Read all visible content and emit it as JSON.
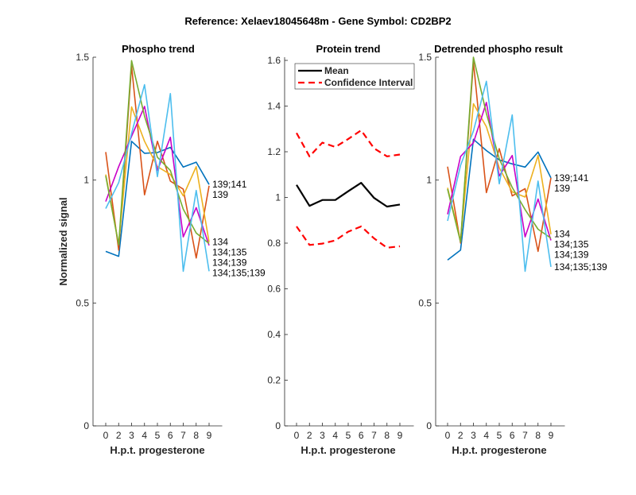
{
  "title": "Reference:  Xelaev18045648m - Gene Symbol:  CD2BP2",
  "chart_data": [
    {
      "type": "line",
      "title": "Phospho trend",
      "xlabel": "H.p.t. progesterone",
      "ylabel": "Normalized signal",
      "categories": [
        "0",
        "2",
        "3",
        "4",
        "5",
        "6",
        "7",
        "8",
        "9"
      ],
      "ylim": [
        0,
        1.5
      ],
      "yticks": [
        "0",
        "0.5",
        "1",
        "1.5"
      ],
      "grid": false,
      "series": [
        {
          "label": "139;141",
          "color": "#0072BD",
          "values": [
            0.71,
            0.69,
            1.158,
            1.109,
            1.112,
            1.133,
            1.053,
            1.073,
            0.982
          ]
        },
        {
          "label": "139",
          "color": "#D95319",
          "values": [
            1.114,
            0.715,
            1.465,
            0.94,
            1.158,
            0.996,
            0.963,
            0.683,
            0.977
          ]
        },
        {
          "label": "134",
          "color": "#EDB120",
          "values": [
            1.023,
            0.737,
            1.298,
            1.158,
            1.055,
            1.023,
            0.936,
            1.055,
            0.748
          ]
        },
        {
          "label": "134;139",
          "color": "#C800C8",
          "values": [
            0.913,
            1.055,
            1.178,
            1.3,
            1.039,
            1.174,
            0.769,
            0.888,
            0.734
          ]
        },
        {
          "label": "134;135",
          "color": "#77AC30",
          "values": [
            1.017,
            0.737,
            1.486,
            1.26,
            1.093,
            1.039,
            0.882,
            0.785,
            0.742
          ]
        },
        {
          "label": "134;135;139",
          "color": "#4DBEEE",
          "values": [
            0.884,
            0.99,
            1.19,
            1.388,
            1.014,
            1.352,
            0.629,
            0.958,
            0.629
          ]
        }
      ]
    },
    {
      "type": "line",
      "title": "Protein trend",
      "xlabel": "H.p.t. progesterone",
      "categories": [
        "0",
        "2",
        "3",
        "4",
        "5",
        "6",
        "7",
        "8",
        "9"
      ],
      "ylim": [
        0,
        1.6
      ],
      "yticks": [
        "0",
        "0.2",
        "0.4",
        "0.6",
        "0.8",
        "1",
        "1.2",
        "1.4",
        "1.6"
      ],
      "grid": false,
      "legend": {
        "placement": "top",
        "entries": [
          "Mean",
          "Confidence Interval"
        ]
      },
      "series": [
        {
          "name": "Mean",
          "color": "#000000",
          "style": "solid",
          "values": [
            1.055,
            0.963,
            0.989,
            0.989,
            1.027,
            1.064,
            0.998,
            0.96,
            0.969
          ]
        },
        {
          "name": "Confidence Interval",
          "color": "#FF0000",
          "style": "dashed",
          "values": [
            1.282,
            1.18,
            1.24,
            1.221,
            1.256,
            1.294,
            1.215,
            1.18,
            1.188
          ]
        },
        {
          "name": "Confidence Interval",
          "color": "#FF0000",
          "style": "dashed",
          "values": [
            0.873,
            0.792,
            0.798,
            0.812,
            0.85,
            0.873,
            0.821,
            0.78,
            0.786
          ]
        }
      ]
    },
    {
      "type": "line",
      "title": "Detrended phospho result",
      "xlabel": "H.p.t. progesterone",
      "categories": [
        "0",
        "2",
        "3",
        "4",
        "5",
        "6",
        "7",
        "8",
        "9"
      ],
      "ylim": [
        0,
        1.5
      ],
      "yticks": [
        "0",
        "0.5",
        "1",
        "1.5"
      ],
      "grid": false,
      "series": [
        {
          "label": "139;141",
          "color": "#0072BD",
          "values": [
            0.675,
            0.715,
            1.166,
            1.12,
            1.082,
            1.066,
            1.053,
            1.114,
            1.009
          ]
        },
        {
          "label": "139",
          "color": "#D95319",
          "values": [
            1.055,
            0.744,
            1.481,
            0.949,
            1.128,
            0.936,
            0.965,
            0.71,
            1.009
          ]
        },
        {
          "label": "134",
          "color": "#EDB120",
          "values": [
            0.969,
            0.753,
            1.311,
            1.217,
            1.05,
            0.952,
            0.931,
            1.1,
            0.78
          ]
        },
        {
          "label": "134;139",
          "color": "#C800C8",
          "values": [
            0.861,
            1.096,
            1.152,
            1.316,
            1.017,
            1.1,
            0.769,
            0.923,
            0.755
          ]
        },
        {
          "label": "134;135",
          "color": "#77AC30",
          "values": [
            0.963,
            0.748,
            1.5,
            1.271,
            1.087,
            0.97,
            0.88,
            0.8,
            0.764
          ]
        },
        {
          "label": "134;135;139",
          "color": "#4DBEEE",
          "values": [
            0.834,
            1.06,
            1.2,
            1.402,
            0.985,
            1.265,
            0.629,
            0.996,
            0.647
          ]
        }
      ]
    }
  ]
}
